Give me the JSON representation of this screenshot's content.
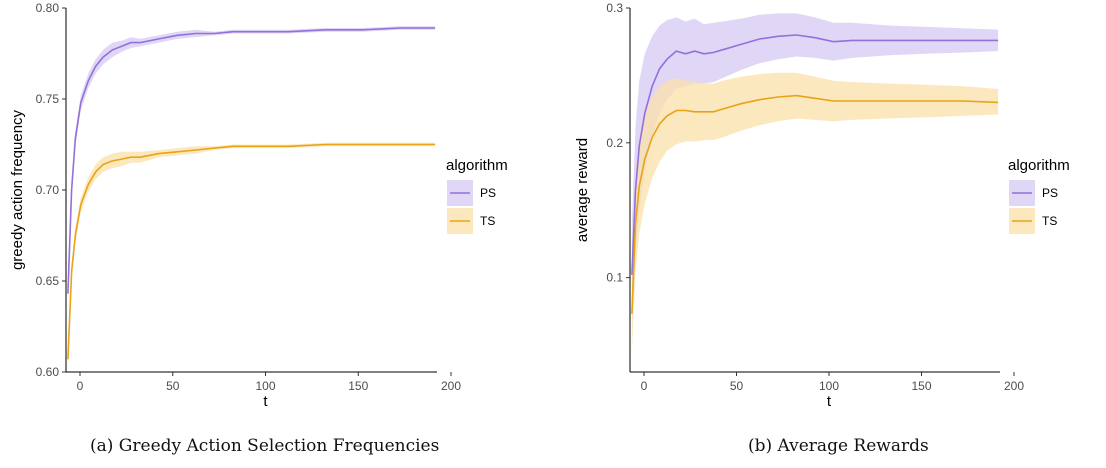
{
  "chart_data": [
    {
      "type": "line",
      "caption": "(a) Greedy Action Selection Frequencies",
      "xlabel": "t",
      "ylabel": "greedy action frequency",
      "xlim": [
        0,
        200
      ],
      "ylim": [
        0.6,
        0.8
      ],
      "xticks": [
        0,
        50,
        100,
        150,
        200
      ],
      "yticks": [
        0.6,
        0.65,
        0.7,
        0.75,
        0.8
      ],
      "ytick_labels": [
        "0.60",
        "0.65",
        "0.70",
        "0.75",
        "0.80"
      ],
      "grid": false,
      "legend": {
        "title": "algorithm",
        "placement": "right"
      },
      "series": [
        {
          "name": "PS",
          "color": "#9370DB",
          "band_color": "#D5C8F2",
          "x": [
            1,
            3,
            5,
            8,
            12,
            16,
            20,
            25,
            30,
            35,
            40,
            50,
            60,
            70,
            80,
            90,
            100,
            120,
            140,
            160,
            180,
            199
          ],
          "y": [
            0.643,
            0.7,
            0.728,
            0.748,
            0.76,
            0.768,
            0.773,
            0.777,
            0.779,
            0.781,
            0.781,
            0.783,
            0.785,
            0.786,
            0.786,
            0.787,
            0.787,
            0.787,
            0.788,
            0.788,
            0.789,
            0.789
          ],
          "lower": [
            0.64,
            0.696,
            0.724,
            0.744,
            0.756,
            0.764,
            0.769,
            0.773,
            0.776,
            0.778,
            0.779,
            0.781,
            0.783,
            0.784,
            0.785,
            0.786,
            0.786,
            0.786,
            0.787,
            0.787,
            0.788,
            0.788
          ],
          "upper": [
            0.646,
            0.704,
            0.732,
            0.752,
            0.764,
            0.772,
            0.777,
            0.781,
            0.782,
            0.784,
            0.783,
            0.785,
            0.787,
            0.788,
            0.787,
            0.788,
            0.788,
            0.788,
            0.789,
            0.789,
            0.79,
            0.79
          ]
        },
        {
          "name": "TS",
          "color": "#E8A317",
          "band_color": "#FBE0AA",
          "x": [
            1,
            3,
            5,
            8,
            12,
            16,
            20,
            25,
            30,
            35,
            40,
            50,
            60,
            70,
            80,
            90,
            100,
            120,
            140,
            160,
            180,
            199
          ],
          "y": [
            0.607,
            0.655,
            0.675,
            0.692,
            0.703,
            0.71,
            0.714,
            0.716,
            0.717,
            0.718,
            0.718,
            0.72,
            0.721,
            0.722,
            0.723,
            0.724,
            0.724,
            0.724,
            0.725,
            0.725,
            0.725,
            0.725
          ],
          "lower": [
            0.604,
            0.651,
            0.671,
            0.688,
            0.699,
            0.706,
            0.71,
            0.712,
            0.713,
            0.715,
            0.715,
            0.718,
            0.719,
            0.72,
            0.722,
            0.723,
            0.723,
            0.723,
            0.724,
            0.724,
            0.724,
            0.724
          ],
          "upper": [
            0.61,
            0.659,
            0.679,
            0.696,
            0.707,
            0.714,
            0.718,
            0.72,
            0.721,
            0.721,
            0.721,
            0.722,
            0.723,
            0.724,
            0.724,
            0.725,
            0.725,
            0.725,
            0.726,
            0.726,
            0.726,
            0.726
          ]
        }
      ]
    },
    {
      "type": "line",
      "caption": "(b) Average Rewards",
      "xlabel": "t",
      "ylabel": "average reward",
      "xlim": [
        0,
        200
      ],
      "ylim": [
        0.03,
        0.3
      ],
      "xticks": [
        0,
        50,
        100,
        150,
        200
      ],
      "yticks": [
        0.1,
        0.2,
        0.3
      ],
      "ytick_labels": [
        "0.1",
        "0.2",
        "0.3"
      ],
      "grid": false,
      "legend": {
        "title": "algorithm",
        "placement": "right"
      },
      "series": [
        {
          "name": "PS",
          "color": "#9370DB",
          "band_color": "#D5C8F2",
          "x": [
            1,
            3,
            5,
            8,
            12,
            16,
            20,
            25,
            30,
            35,
            40,
            45,
            50,
            60,
            70,
            80,
            90,
            100,
            110,
            120,
            140,
            160,
            180,
            199
          ],
          "y": [
            0.102,
            0.165,
            0.198,
            0.222,
            0.242,
            0.255,
            0.262,
            0.268,
            0.266,
            0.268,
            0.266,
            0.267,
            0.269,
            0.273,
            0.277,
            0.279,
            0.28,
            0.278,
            0.275,
            0.276,
            0.276,
            0.276,
            0.276,
            0.276
          ],
          "lower": [
            0.065,
            0.118,
            0.15,
            0.178,
            0.205,
            0.222,
            0.232,
            0.24,
            0.242,
            0.244,
            0.244,
            0.245,
            0.248,
            0.254,
            0.259,
            0.262,
            0.264,
            0.263,
            0.261,
            0.263,
            0.265,
            0.266,
            0.267,
            0.268
          ],
          "upper": [
            0.14,
            0.212,
            0.246,
            0.266,
            0.279,
            0.287,
            0.291,
            0.293,
            0.29,
            0.292,
            0.288,
            0.289,
            0.29,
            0.292,
            0.295,
            0.296,
            0.296,
            0.293,
            0.289,
            0.289,
            0.287,
            0.286,
            0.285,
            0.284
          ]
        },
        {
          "name": "TS",
          "color": "#E8A317",
          "band_color": "#FBE0AA",
          "x": [
            1,
            3,
            5,
            8,
            12,
            16,
            20,
            25,
            30,
            35,
            40,
            45,
            50,
            60,
            70,
            80,
            90,
            100,
            110,
            120,
            140,
            160,
            180,
            199
          ],
          "y": [
            0.073,
            0.14,
            0.168,
            0.188,
            0.204,
            0.214,
            0.22,
            0.224,
            0.224,
            0.223,
            0.223,
            0.223,
            0.225,
            0.229,
            0.232,
            0.234,
            0.235,
            0.233,
            0.231,
            0.231,
            0.231,
            0.231,
            0.231,
            0.23
          ],
          "lower": [
            0.045,
            0.105,
            0.133,
            0.155,
            0.174,
            0.186,
            0.194,
            0.199,
            0.201,
            0.201,
            0.202,
            0.202,
            0.204,
            0.209,
            0.213,
            0.216,
            0.218,
            0.217,
            0.216,
            0.217,
            0.218,
            0.219,
            0.22,
            0.221
          ],
          "upper": [
            0.1,
            0.175,
            0.203,
            0.221,
            0.234,
            0.242,
            0.246,
            0.248,
            0.246,
            0.245,
            0.244,
            0.244,
            0.246,
            0.249,
            0.251,
            0.252,
            0.252,
            0.249,
            0.246,
            0.245,
            0.244,
            0.243,
            0.242,
            0.24
          ]
        }
      ]
    }
  ]
}
